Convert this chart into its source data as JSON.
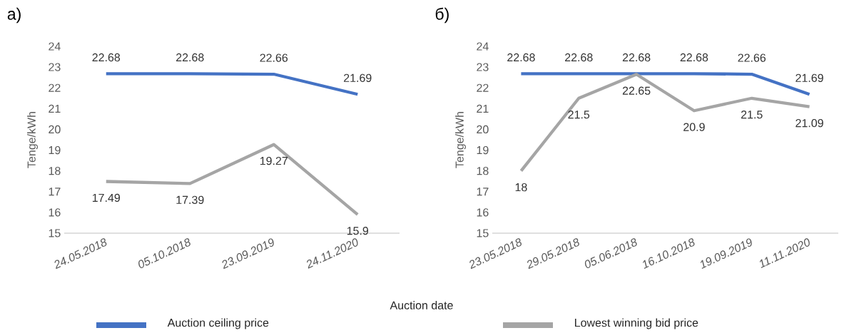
{
  "chart_data": [
    {
      "type": "line",
      "title": "а)",
      "xlabel": "Auction date",
      "ylabel": "Tenge/kWh",
      "categories": [
        "24.05.2018",
        "05.10.2018",
        "23.09.2019",
        "24.11.2020"
      ],
      "series": [
        {
          "name": "Auction ceiling price",
          "color": "#4472c4",
          "values": [
            22.68,
            22.68,
            22.66,
            21.69
          ]
        },
        {
          "name": "Lowest winning bid price",
          "color": "#a5a5a5",
          "values": [
            17.49,
            17.39,
            19.27,
            15.9
          ]
        }
      ],
      "ylim": [
        15,
        24
      ],
      "yticks": [
        15,
        16,
        17,
        18,
        19,
        20,
        21,
        22,
        23,
        24
      ],
      "data_labels": true,
      "legend": "bottom",
      "marker": "none",
      "grid": false
    },
    {
      "type": "line",
      "title": "б)",
      "ylabel": "Tenge/kWh",
      "categories": [
        "23.05.2018",
        "29.05.2018",
        "05.06.2018",
        "16.10.2018",
        "19.09.2019",
        "11.11.2020"
      ],
      "series": [
        {
          "color": "#4472c4",
          "values": [
            22.68,
            22.68,
            22.68,
            22.68,
            22.66,
            21.69
          ]
        },
        {
          "color": "#a5a5a5",
          "values": [
            18,
            21.5,
            22.65,
            20.9,
            21.5,
            21.09
          ]
        }
      ],
      "ylim": [
        15,
        24
      ],
      "yticks": [
        15,
        16,
        17,
        18,
        19,
        20,
        21,
        22,
        23,
        24
      ],
      "data_labels": true,
      "marker": "none",
      "grid": false
    }
  ]
}
